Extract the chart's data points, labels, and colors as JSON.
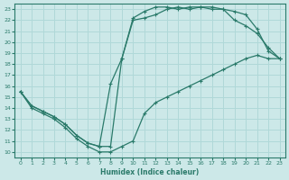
{
  "xlabel": "Humidex (Indice chaleur)",
  "bg_color": "#cce8e8",
  "grid_color": "#b0d8d8",
  "line_color": "#2a7a6a",
  "xlim": [
    -0.5,
    23.5
  ],
  "ylim": [
    9.5,
    23.5
  ],
  "xticks": [
    0,
    1,
    2,
    3,
    4,
    5,
    6,
    7,
    8,
    9,
    10,
    11,
    12,
    13,
    14,
    15,
    16,
    17,
    18,
    19,
    20,
    21,
    22,
    23
  ],
  "yticks": [
    10,
    11,
    12,
    13,
    14,
    15,
    16,
    17,
    18,
    19,
    20,
    21,
    22,
    23
  ],
  "line1_x": [
    0,
    1,
    2,
    3,
    4,
    5,
    6,
    7,
    8,
    9,
    10,
    11,
    12,
    13,
    14,
    15,
    16,
    17,
    18,
    19,
    20,
    21,
    22,
    23
  ],
  "line1_y": [
    15.5,
    14.0,
    13.5,
    13.0,
    12.2,
    11.2,
    10.5,
    10.0,
    10.0,
    10.5,
    11.0,
    13.5,
    14.5,
    15.0,
    15.5,
    16.0,
    16.5,
    17.0,
    17.5,
    18.0,
    18.5,
    18.8,
    18.5,
    18.5
  ],
  "line2_x": [
    0,
    1,
    2,
    3,
    4,
    5,
    6,
    7,
    8,
    9,
    10,
    11,
    12,
    13,
    14,
    15,
    16,
    17,
    18,
    19,
    20,
    21,
    22,
    23
  ],
  "line2_y": [
    15.5,
    14.2,
    13.7,
    13.2,
    12.5,
    11.5,
    10.8,
    10.5,
    10.5,
    18.5,
    22.2,
    22.8,
    23.2,
    23.2,
    23.0,
    23.2,
    23.2,
    23.0,
    23.0,
    22.8,
    22.5,
    21.2,
    19.2,
    18.5
  ],
  "line3_x": [
    0,
    1,
    2,
    3,
    4,
    5,
    6,
    7,
    8,
    9,
    10,
    11,
    12,
    13,
    14,
    15,
    16,
    17,
    18,
    19,
    20,
    21,
    22,
    23
  ],
  "line3_y": [
    15.5,
    14.2,
    13.7,
    13.2,
    12.5,
    11.5,
    10.8,
    10.5,
    16.2,
    18.5,
    22.0,
    22.2,
    22.5,
    23.0,
    23.2,
    23.0,
    23.2,
    23.2,
    23.0,
    22.0,
    21.5,
    20.8,
    19.5,
    18.5
  ]
}
